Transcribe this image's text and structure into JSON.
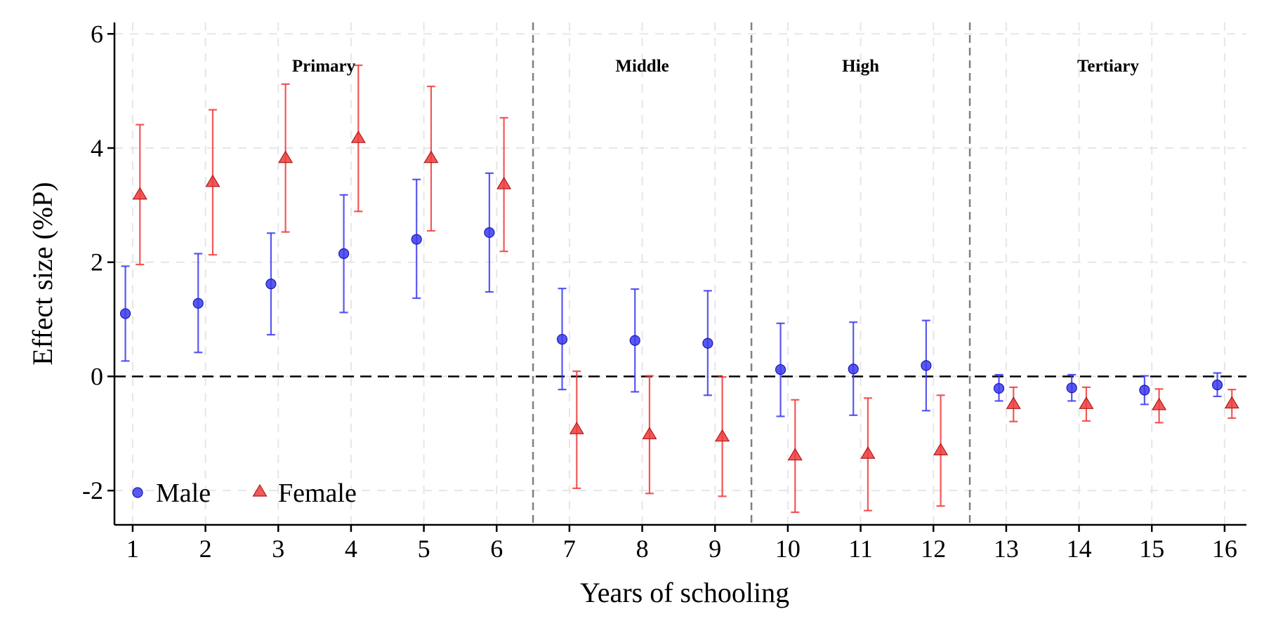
{
  "chart_data": {
    "type": "scatter",
    "subtype": "point-with-error-bars",
    "xlabel": "Years of schooling",
    "ylabel": "Effect size (%P)",
    "xlim": [
      0.75,
      16.3
    ],
    "ylim": [
      -2.6,
      6.2
    ],
    "x_ticks": [
      1,
      2,
      3,
      4,
      5,
      6,
      7,
      8,
      9,
      10,
      11,
      12,
      13,
      14,
      15,
      16
    ],
    "y_ticks": [
      -2,
      0,
      2,
      4,
      6
    ],
    "grid": true,
    "zero_line": true,
    "legend_position": "bottom-left",
    "sections": [
      {
        "label": "Primary",
        "from": 0.75,
        "to": 6.5
      },
      {
        "label": "Middle",
        "from": 6.5,
        "to": 9.5
      },
      {
        "label": "High",
        "from": 9.5,
        "to": 12.5
      },
      {
        "label": "Tertiary",
        "from": 12.5,
        "to": 16.3
      }
    ],
    "section_dividers": [
      6.5,
      9.5,
      12.5
    ],
    "series": [
      {
        "name": "Male",
        "marker": "circle",
        "color": "#3B3BF0",
        "offset": -0.1,
        "x": [
          1,
          2,
          3,
          4,
          5,
          6,
          7,
          8,
          9,
          10,
          11,
          12,
          13,
          14,
          15,
          16
        ],
        "y": [
          1.1,
          1.28,
          1.62,
          2.15,
          2.4,
          2.52,
          0.65,
          0.63,
          0.58,
          0.12,
          0.13,
          0.19,
          -0.21,
          -0.2,
          -0.24,
          -0.15
        ],
        "ci_low": [
          0.27,
          0.42,
          0.73,
          1.12,
          1.37,
          1.48,
          -0.23,
          -0.27,
          -0.33,
          -0.7,
          -0.68,
          -0.6,
          -0.43,
          -0.43,
          -0.49,
          -0.35
        ],
        "ci_high": [
          1.93,
          2.15,
          2.51,
          3.18,
          3.45,
          3.56,
          1.54,
          1.53,
          1.5,
          0.93,
          0.95,
          0.98,
          0.03,
          0.03,
          0.01,
          0.06
        ]
      },
      {
        "name": "Female",
        "marker": "triangle",
        "color": "#F03B3B",
        "offset": 0.1,
        "x": [
          1,
          2,
          3,
          4,
          5,
          6,
          7,
          8,
          9,
          10,
          11,
          12,
          13,
          14,
          15,
          16
        ],
        "y": [
          3.18,
          3.4,
          3.82,
          4.17,
          3.82,
          3.36,
          -0.93,
          -1.02,
          -1.06,
          -1.39,
          -1.36,
          -1.3,
          -0.49,
          -0.49,
          -0.51,
          -0.48
        ],
        "ci_low": [
          1.96,
          2.13,
          2.53,
          2.89,
          2.55,
          2.19,
          -1.96,
          -2.05,
          -2.1,
          -2.38,
          -2.35,
          -2.27,
          -0.79,
          -0.78,
          -0.81,
          -0.73
        ],
        "ci_high": [
          4.41,
          4.67,
          5.12,
          5.45,
          5.08,
          4.53,
          0.09,
          0.01,
          -0.01,
          -0.41,
          -0.38,
          -0.33,
          -0.19,
          -0.19,
          -0.22,
          -0.23
        ]
      }
    ]
  }
}
